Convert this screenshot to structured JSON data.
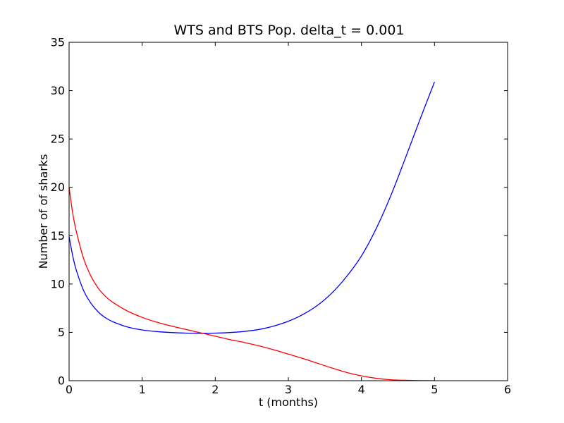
{
  "chart_data": {
    "type": "line",
    "title": "WTS and BTS Pop. delta_t = 0.001",
    "xlabel": "t (months)",
    "ylabel": "Number of of sharks",
    "xlim": [
      0,
      6
    ],
    "ylim": [
      0,
      35
    ],
    "xticks": [
      0,
      1,
      2,
      3,
      4,
      5,
      6
    ],
    "yticks": [
      0,
      5,
      10,
      15,
      20,
      25,
      30,
      35
    ],
    "grid": false,
    "legend": "none",
    "series": [
      {
        "color": "#0000ff",
        "x": [
          0,
          0.05,
          0.1,
          0.2,
          0.3,
          0.4,
          0.5,
          0.6,
          0.8,
          1.0,
          1.2,
          1.4,
          1.6,
          1.8,
          2.0,
          2.2,
          2.4,
          2.6,
          2.8,
          3.0,
          3.2,
          3.4,
          3.6,
          3.8,
          4.0,
          4.2,
          4.4,
          4.6,
          4.8,
          5.0
        ],
        "y": [
          14.9,
          12.9,
          11.4,
          9.3,
          8.0,
          7.1,
          6.5,
          6.1,
          5.55,
          5.25,
          5.08,
          4.98,
          4.92,
          4.9,
          4.92,
          4.98,
          5.1,
          5.3,
          5.65,
          6.15,
          6.85,
          7.8,
          9.1,
          10.8,
          12.9,
          15.7,
          19.1,
          23.0,
          27.0,
          30.9
        ]
      },
      {
        "color": "#ff0000",
        "x": [
          0,
          0.05,
          0.1,
          0.2,
          0.3,
          0.4,
          0.5,
          0.6,
          0.8,
          1.0,
          1.2,
          1.4,
          1.6,
          1.8,
          2.0,
          2.2,
          2.4,
          2.6,
          2.8,
          3.0,
          3.2,
          3.4,
          3.6,
          3.8,
          4.0,
          4.2,
          4.4,
          4.6,
          4.8,
          5.0
        ],
        "y": [
          20.0,
          17.3,
          15.4,
          12.6,
          10.8,
          9.55,
          8.7,
          8.1,
          7.2,
          6.55,
          6.05,
          5.65,
          5.3,
          4.95,
          4.6,
          4.25,
          3.95,
          3.6,
          3.2,
          2.75,
          2.3,
          1.8,
          1.3,
          0.85,
          0.5,
          0.25,
          0.1,
          0.04,
          0.01,
          0.0
        ]
      }
    ]
  }
}
